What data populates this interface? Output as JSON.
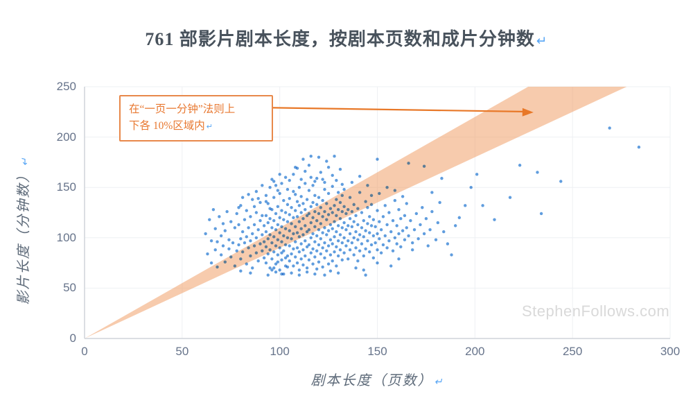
{
  "title": {
    "text": "761 部影片剧本长度，按剧本页数和成片分钟数",
    "return_mark": "↵"
  },
  "annotation": {
    "line1": "在“一页一分钟”法则上",
    "line2": "下各 10%区域内",
    "return_mark": "↵"
  },
  "watermark": "StephenFollows.com",
  "colors": {
    "band": "#ef9c61",
    "band_opacity": 0.52,
    "point": "#4a90d9",
    "arrow": "#e87828",
    "grid": "#eef0f3",
    "axis_line": "#cfd4da",
    "tick_text": "#66738a",
    "title_text": "#48525c",
    "annotation_orange": "#e87830",
    "return_mark_blue": "#58a6f5",
    "watermark_gray": "#d9d9d9"
  },
  "chart_data": {
    "type": "scatter",
    "title": "761 部影片剧本长度，按剧本页数和成片分钟数",
    "xlabel": "剧本长度（页数）",
    "ylabel": "影片长度（分钟数）",
    "xlim": [
      0,
      300
    ],
    "ylim": [
      0,
      250
    ],
    "xticks": [
      0,
      50,
      100,
      150,
      200,
      250,
      300
    ],
    "yticks": [
      0,
      50,
      100,
      150,
      200,
      250
    ],
    "grid": true,
    "band": {
      "description": "one-page-one-minute rule ±10%",
      "lower_slope": 0.9,
      "upper_slope": 1.1
    },
    "annotation_arrow": {
      "from": [
        90.5,
        229.3
      ],
      "to": [
        230,
        224.5
      ]
    },
    "point_radius": 2.2,
    "points": [
      [
        62,
        104
      ],
      [
        63,
        84
      ],
      [
        64,
        118
      ],
      [
        65,
        75
      ],
      [
        65,
        97
      ],
      [
        66,
        128
      ],
      [
        67,
        88
      ],
      [
        67,
        109
      ],
      [
        68,
        71
      ],
      [
        68,
        96
      ],
      [
        69,
        121
      ],
      [
        70,
        83
      ],
      [
        70,
        102
      ],
      [
        71,
        92
      ],
      [
        71,
        114
      ],
      [
        72,
        76
      ],
      [
        72,
        107
      ],
      [
        73,
        126
      ],
      [
        74,
        89
      ],
      [
        74,
        98
      ],
      [
        75,
        81
      ],
      [
        75,
        116
      ],
      [
        76,
        95
      ],
      [
        77,
        72
      ],
      [
        77,
        110
      ],
      [
        78,
        87
      ],
      [
        78,
        124
      ],
      [
        79,
        93
      ],
      [
        79,
        113
      ],
      [
        80,
        79
      ],
      [
        80,
        99
      ],
      [
        80,
        132
      ],
      [
        81,
        86
      ],
      [
        81,
        106
      ],
      [
        82,
        95
      ],
      [
        82,
        118
      ],
      [
        83,
        74
      ],
      [
        83,
        101
      ],
      [
        83,
        127
      ],
      [
        84,
        90
      ],
      [
        84,
        110
      ],
      [
        85,
        82
      ],
      [
        85,
        97
      ],
      [
        85,
        121
      ],
      [
        86,
        70
      ],
      [
        86,
        104
      ],
      [
        86,
        138
      ],
      [
        87,
        92
      ],
      [
        87,
        113
      ],
      [
        88,
        85
      ],
      [
        88,
        100
      ],
      [
        88,
        125
      ],
      [
        89,
        77
      ],
      [
        89,
        108
      ],
      [
        90,
        94
      ],
      [
        90,
        117
      ],
      [
        90,
        135
      ],
      [
        91,
        87
      ],
      [
        91,
        103
      ],
      [
        92,
        80
      ],
      [
        92,
        112
      ],
      [
        92,
        96
      ],
      [
        79,
        130
      ],
      [
        81,
        140
      ],
      [
        84,
        143
      ],
      [
        87,
        131
      ],
      [
        89,
        139
      ],
      [
        91,
        122
      ],
      [
        80,
        67
      ],
      [
        85,
        65
      ],
      [
        88,
        146
      ],
      [
        91,
        152
      ],
      [
        93,
        75
      ],
      [
        93,
        91
      ],
      [
        93,
        106
      ],
      [
        93,
        122
      ],
      [
        94,
        84
      ],
      [
        94,
        99
      ],
      [
        94,
        115
      ],
      [
        94,
        134
      ],
      [
        95,
        70
      ],
      [
        95,
        88
      ],
      [
        95,
        103
      ],
      [
        95,
        119
      ],
      [
        96,
        79
      ],
      [
        96,
        95
      ],
      [
        96,
        110
      ],
      [
        96,
        128
      ],
      [
        97,
        86
      ],
      [
        97,
        101
      ],
      [
        97,
        117
      ],
      [
        97,
        140
      ],
      [
        98,
        74
      ],
      [
        98,
        92
      ],
      [
        98,
        108
      ],
      [
        98,
        124
      ],
      [
        99,
        83
      ],
      [
        99,
        98
      ],
      [
        99,
        113
      ],
      [
        99,
        131
      ],
      [
        100,
        68
      ],
      [
        100,
        90
      ],
      [
        100,
        105
      ],
      [
        100,
        120
      ],
      [
        100,
        144
      ],
      [
        101,
        78
      ],
      [
        101,
        96
      ],
      [
        101,
        111
      ],
      [
        101,
        127
      ],
      [
        102,
        87
      ],
      [
        102,
        102
      ],
      [
        102,
        118
      ],
      [
        102,
        137
      ],
      [
        103,
        72
      ],
      [
        103,
        93
      ],
      [
        103,
        109
      ],
      [
        103,
        125
      ],
      [
        104,
        82
      ],
      [
        104,
        100
      ],
      [
        104,
        116
      ],
      [
        104,
        148
      ],
      [
        93,
        142
      ],
      [
        95,
        150
      ],
      [
        97,
        156
      ],
      [
        99,
        147
      ],
      [
        101,
        154
      ],
      [
        103,
        160
      ],
      [
        94,
        63
      ],
      [
        98,
        66
      ],
      [
        102,
        64
      ],
      [
        96,
        158
      ],
      [
        100,
        163
      ],
      [
        104,
        133
      ],
      [
        93,
        136
      ],
      [
        95,
        129
      ],
      [
        97,
        70
      ],
      [
        99,
        76
      ],
      [
        101,
        85
      ],
      [
        103,
        80
      ],
      [
        104,
        71
      ],
      [
        96,
        68
      ],
      [
        98,
        152
      ],
      [
        105,
        77
      ],
      [
        105,
        92
      ],
      [
        105,
        107
      ],
      [
        105,
        123
      ],
      [
        105,
        139
      ],
      [
        106,
        84
      ],
      [
        106,
        99
      ],
      [
        106,
        114
      ],
      [
        106,
        130
      ],
      [
        107,
        72
      ],
      [
        107,
        89
      ],
      [
        107,
        104
      ],
      [
        107,
        120
      ],
      [
        107,
        146
      ],
      [
        108,
        81
      ],
      [
        108,
        96
      ],
      [
        108,
        111
      ],
      [
        108,
        127
      ],
      [
        108,
        143
      ],
      [
        109,
        75
      ],
      [
        109,
        90
      ],
      [
        109,
        105
      ],
      [
        109,
        121
      ],
      [
        109,
        136
      ],
      [
        110,
        68
      ],
      [
        110,
        86
      ],
      [
        110,
        101
      ],
      [
        110,
        116
      ],
      [
        110,
        132
      ],
      [
        110,
        150
      ],
      [
        111,
        79
      ],
      [
        111,
        94
      ],
      [
        111,
        109
      ],
      [
        111,
        125
      ],
      [
        111,
        141
      ],
      [
        112,
        73
      ],
      [
        112,
        88
      ],
      [
        112,
        103
      ],
      [
        112,
        119
      ],
      [
        112,
        134
      ],
      [
        113,
        82
      ],
      [
        113,
        97
      ],
      [
        113,
        112
      ],
      [
        113,
        128
      ],
      [
        113,
        154
      ],
      [
        114,
        70
      ],
      [
        114,
        91
      ],
      [
        114,
        106
      ],
      [
        114,
        122
      ],
      [
        114,
        138
      ],
      [
        115,
        78
      ],
      [
        115,
        93
      ],
      [
        115,
        108
      ],
      [
        115,
        124
      ],
      [
        115,
        147
      ],
      [
        116,
        85
      ],
      [
        116,
        100
      ],
      [
        116,
        115
      ],
      [
        116,
        131
      ],
      [
        116,
        160
      ],
      [
        117,
        74
      ],
      [
        117,
        89
      ],
      [
        117,
        104
      ],
      [
        117,
        120
      ],
      [
        117,
        135
      ],
      [
        118,
        81
      ],
      [
        118,
        96
      ],
      [
        118,
        111
      ],
      [
        118,
        126
      ],
      [
        118,
        142
      ],
      [
        105,
        157
      ],
      [
        107,
        163
      ],
      [
        109,
        169
      ],
      [
        111,
        158
      ],
      [
        113,
        166
      ],
      [
        115,
        172
      ],
      [
        117,
        152
      ],
      [
        106,
        65
      ],
      [
        110,
        63
      ],
      [
        114,
        66
      ],
      [
        118,
        64
      ],
      [
        108,
        170
      ],
      [
        112,
        178
      ],
      [
        116,
        181
      ],
      [
        118,
        156
      ],
      [
        119,
        87
      ],
      [
        119,
        102
      ],
      [
        119,
        117
      ],
      [
        119,
        133
      ],
      [
        120,
        76
      ],
      [
        120,
        93
      ],
      [
        120,
        108
      ],
      [
        120,
        124
      ],
      [
        120,
        140
      ],
      [
        121,
        84
      ],
      [
        121,
        99
      ],
      [
        121,
        114
      ],
      [
        121,
        130
      ],
      [
        122,
        71
      ],
      [
        122,
        90
      ],
      [
        122,
        105
      ],
      [
        122,
        121
      ],
      [
        122,
        137
      ],
      [
        123,
        80
      ],
      [
        123,
        95
      ],
      [
        123,
        110
      ],
      [
        123,
        126
      ],
      [
        123,
        148
      ],
      [
        124,
        87
      ],
      [
        124,
        103
      ],
      [
        124,
        118
      ],
      [
        124,
        134
      ],
      [
        125,
        74
      ],
      [
        125,
        92
      ],
      [
        125,
        107
      ],
      [
        125,
        123
      ],
      [
        125,
        144
      ],
      [
        126,
        83
      ],
      [
        126,
        98
      ],
      [
        126,
        113
      ],
      [
        126,
        129
      ],
      [
        127,
        77
      ],
      [
        127,
        94
      ],
      [
        127,
        109
      ],
      [
        127,
        125
      ],
      [
        127,
        151
      ],
      [
        128,
        86
      ],
      [
        128,
        101
      ],
      [
        128,
        116
      ],
      [
        128,
        132
      ],
      [
        129,
        72
      ],
      [
        129,
        91
      ],
      [
        129,
        106
      ],
      [
        129,
        122
      ],
      [
        129,
        138
      ],
      [
        130,
        82
      ],
      [
        130,
        97
      ],
      [
        130,
        112
      ],
      [
        130,
        128
      ],
      [
        130,
        145
      ],
      [
        131,
        88
      ],
      [
        131,
        103
      ],
      [
        131,
        119
      ],
      [
        131,
        135
      ],
      [
        132,
        78
      ],
      [
        132,
        95
      ],
      [
        132,
        110
      ],
      [
        132,
        126
      ],
      [
        132,
        142
      ],
      [
        119,
        159
      ],
      [
        121,
        165
      ],
      [
        123,
        155
      ],
      [
        125,
        170
      ],
      [
        127,
        162
      ],
      [
        129,
        157
      ],
      [
        131,
        168
      ],
      [
        120,
        180
      ],
      [
        124,
        176
      ],
      [
        128,
        181
      ],
      [
        126,
        67
      ],
      [
        130,
        65
      ],
      [
        122,
        158
      ],
      [
        132,
        153
      ],
      [
        119,
        69
      ],
      [
        123,
        63
      ],
      [
        133,
        85
      ],
      [
        133,
        100
      ],
      [
        133,
        115
      ],
      [
        133,
        131
      ],
      [
        134,
        92
      ],
      [
        134,
        108
      ],
      [
        134,
        124
      ],
      [
        135,
        79
      ],
      [
        135,
        97
      ],
      [
        135,
        112
      ],
      [
        135,
        128
      ],
      [
        136,
        88
      ],
      [
        136,
        104
      ],
      [
        136,
        119
      ],
      [
        136,
        140
      ],
      [
        137,
        95
      ],
      [
        137,
        111
      ],
      [
        137,
        126
      ],
      [
        138,
        83
      ],
      [
        138,
        100
      ],
      [
        138,
        116
      ],
      [
        138,
        133
      ],
      [
        139,
        90
      ],
      [
        139,
        106
      ],
      [
        139,
        122
      ],
      [
        140,
        77
      ],
      [
        140,
        98
      ],
      [
        140,
        113
      ],
      [
        140,
        129
      ],
      [
        141,
        87
      ],
      [
        141,
        103
      ],
      [
        141,
        145
      ],
      [
        142,
        94
      ],
      [
        142,
        110
      ],
      [
        142,
        125
      ],
      [
        143,
        82
      ],
      [
        143,
        101
      ],
      [
        143,
        117
      ],
      [
        144,
        89
      ],
      [
        144,
        107
      ],
      [
        144,
        136
      ],
      [
        145,
        97
      ],
      [
        145,
        114
      ],
      [
        145,
        130
      ],
      [
        146,
        86
      ],
      [
        146,
        105
      ],
      [
        146,
        121
      ],
      [
        147,
        93
      ],
      [
        147,
        112
      ],
      [
        147,
        142
      ],
      [
        148,
        80
      ],
      [
        148,
        102
      ],
      [
        148,
        118
      ],
      [
        133,
        148
      ],
      [
        137,
        155
      ],
      [
        141,
        161
      ],
      [
        145,
        152
      ],
      [
        139,
        70
      ],
      [
        143,
        68
      ],
      [
        147,
        133
      ],
      [
        149,
        95
      ],
      [
        149,
        111
      ],
      [
        150,
        88
      ],
      [
        150,
        104
      ],
      [
        150,
        127
      ],
      [
        151,
        99
      ],
      [
        151,
        116
      ],
      [
        152,
        85
      ],
      [
        152,
        108
      ],
      [
        153,
        93
      ],
      [
        153,
        121
      ],
      [
        154,
        102
      ],
      [
        154,
        132
      ],
      [
        155,
        90
      ],
      [
        155,
        113
      ],
      [
        156,
        97
      ],
      [
        156,
        125
      ],
      [
        157,
        106
      ],
      [
        158,
        87
      ],
      [
        158,
        117
      ],
      [
        159,
        100
      ],
      [
        159,
        137
      ],
      [
        160,
        94
      ],
      [
        160,
        112
      ],
      [
        161,
        104
      ],
      [
        161,
        128
      ],
      [
        162,
        91
      ],
      [
        162,
        119
      ],
      [
        163,
        107
      ],
      [
        164,
        98
      ],
      [
        164,
        122
      ],
      [
        165,
        110
      ],
      [
        151,
        144
      ],
      [
        155,
        150
      ],
      [
        159,
        147
      ],
      [
        163,
        141
      ],
      [
        150,
        75
      ],
      [
        157,
        72
      ],
      [
        161,
        79
      ],
      [
        165,
        134
      ],
      [
        166,
        102
      ],
      [
        167,
        117
      ],
      [
        168,
        95
      ],
      [
        169,
        108
      ],
      [
        170,
        124
      ],
      [
        171,
        99
      ],
      [
        172,
        113
      ],
      [
        173,
        130
      ],
      [
        174,
        104
      ],
      [
        175,
        119
      ],
      [
        176,
        92
      ],
      [
        177,
        108
      ],
      [
        178,
        126
      ],
      [
        180,
        98
      ],
      [
        181,
        115
      ],
      [
        182,
        135
      ],
      [
        184,
        106
      ],
      [
        186,
        94
      ],
      [
        188,
        83
      ],
      [
        190,
        112
      ],
      [
        174,
        171
      ],
      [
        183,
        159
      ],
      [
        168,
        88
      ],
      [
        178,
        145
      ],
      [
        192,
        120
      ],
      [
        195,
        132
      ],
      [
        198,
        150
      ],
      [
        201,
        163
      ],
      [
        204,
        132
      ],
      [
        210,
        118
      ],
      [
        218,
        140
      ],
      [
        223,
        172
      ],
      [
        232,
        165
      ],
      [
        234,
        124
      ],
      [
        244,
        156
      ],
      [
        269,
        209
      ],
      [
        284,
        190
      ],
      [
        150,
        178
      ],
      [
        166,
        174
      ],
      [
        144,
        63
      ],
      [
        101,
        64
      ]
    ]
  }
}
